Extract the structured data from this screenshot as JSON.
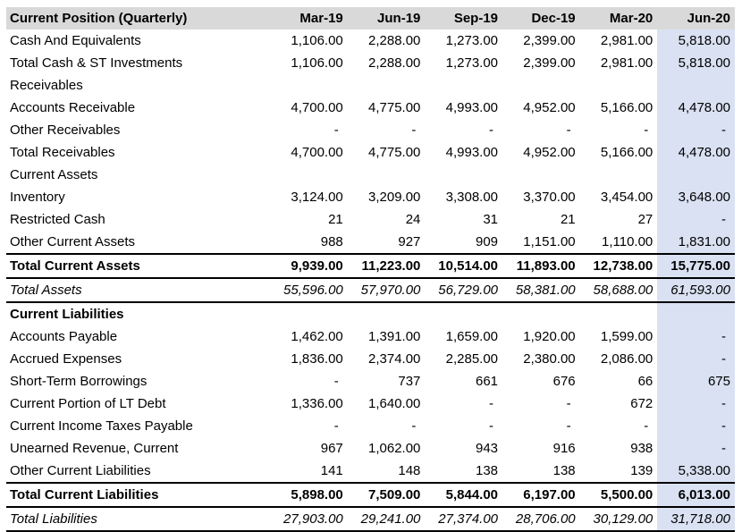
{
  "colors": {
    "header_bg": "#d9d9d9",
    "highlight_column_bg": "#d9e1f2",
    "border": "#000000",
    "text": "#000000"
  },
  "table": {
    "title": "Current Position (Quarterly)",
    "columns": [
      "Mar-19",
      "Jun-19",
      "Sep-19",
      "Dec-19",
      "Mar-20",
      "Jun-20"
    ],
    "highlighted_column": "Jun-20",
    "rows": [
      {
        "label": "Cash And Equivalents",
        "style": "normal",
        "values": [
          "1,106.00",
          "2,288.00",
          "1,273.00",
          "2,399.00",
          "2,981.00",
          "5,818.00"
        ]
      },
      {
        "label": "Total Cash & ST Investments",
        "style": "normal",
        "values": [
          "1,106.00",
          "2,288.00",
          "1,273.00",
          "2,399.00",
          "2,981.00",
          "5,818.00"
        ]
      },
      {
        "label": "Receivables",
        "style": "section",
        "values": [
          "",
          "",
          "",
          "",
          "",
          ""
        ]
      },
      {
        "label": "Accounts Receivable",
        "style": "normal",
        "values": [
          "4,700.00",
          "4,775.00",
          "4,993.00",
          "4,952.00",
          "5,166.00",
          "4,478.00"
        ]
      },
      {
        "label": "Other Receivables",
        "style": "normal",
        "values": [
          "-",
          "-",
          "-",
          "-",
          "-",
          "-"
        ]
      },
      {
        "label": "Total Receivables",
        "style": "normal",
        "values": [
          "4,700.00",
          "4,775.00",
          "4,993.00",
          "4,952.00",
          "5,166.00",
          "4,478.00"
        ]
      },
      {
        "label": "Current Assets",
        "style": "section",
        "values": [
          "",
          "",
          "",
          "",
          "",
          ""
        ]
      },
      {
        "label": "Inventory",
        "style": "normal",
        "values": [
          "3,124.00",
          "3,209.00",
          "3,308.00",
          "3,370.00",
          "3,454.00",
          "3,648.00"
        ]
      },
      {
        "label": "Restricted Cash",
        "style": "normal",
        "values": [
          "21",
          "24",
          "31",
          "21",
          "27",
          "-"
        ]
      },
      {
        "label": "Other Current Assets",
        "style": "normal",
        "values": [
          "988",
          "927",
          "909",
          "1,151.00",
          "1,110.00",
          "1,831.00"
        ]
      },
      {
        "label": "Total Current Assets",
        "style": "total",
        "values": [
          "9,939.00",
          "11,223.00",
          "10,514.00",
          "11,893.00",
          "12,738.00",
          "15,775.00"
        ]
      },
      {
        "label": "Total Assets",
        "style": "grand",
        "values": [
          "55,596.00",
          "57,970.00",
          "56,729.00",
          "58,381.00",
          "58,688.00",
          "61,593.00"
        ]
      },
      {
        "label": "Current Liabilities",
        "style": "section-bold",
        "values": [
          "",
          "",
          "",
          "",
          "",
          ""
        ]
      },
      {
        "label": "Accounts Payable",
        "style": "normal",
        "values": [
          "1,462.00",
          "1,391.00",
          "1,659.00",
          "1,920.00",
          "1,599.00",
          "-"
        ]
      },
      {
        "label": "Accrued Expenses",
        "style": "normal",
        "values": [
          "1,836.00",
          "2,374.00",
          "2,285.00",
          "2,380.00",
          "2,086.00",
          "-"
        ]
      },
      {
        "label": "Short-Term Borrowings",
        "style": "normal",
        "values": [
          "-",
          "737",
          "661",
          "676",
          "66",
          "675"
        ]
      },
      {
        "label": "Current Portion of LT Debt",
        "style": "normal",
        "values": [
          "1,336.00",
          "1,640.00",
          "-",
          "-",
          "672",
          "-"
        ]
      },
      {
        "label": "Current Income Taxes Payable",
        "style": "normal",
        "values": [
          "-",
          "-",
          "-",
          "-",
          "-",
          "-"
        ]
      },
      {
        "label": "Unearned Revenue, Current",
        "style": "normal",
        "values": [
          "967",
          "1,062.00",
          "943",
          "916",
          "938",
          "-"
        ]
      },
      {
        "label": "Other Current Liabilities",
        "style": "normal",
        "values": [
          "141",
          "148",
          "138",
          "138",
          "139",
          "5,338.00"
        ]
      },
      {
        "label": "Total Current Liabilities",
        "style": "total",
        "values": [
          "5,898.00",
          "7,509.00",
          "5,844.00",
          "6,197.00",
          "5,500.00",
          "6,013.00"
        ]
      },
      {
        "label": "Total Liabilities",
        "style": "grand",
        "values": [
          "27,903.00",
          "29,241.00",
          "27,374.00",
          "28,706.00",
          "30,129.00",
          "31,718.00"
        ]
      }
    ]
  }
}
